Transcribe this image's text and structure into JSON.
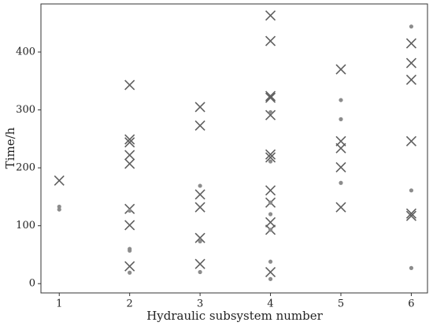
{
  "chart_data": {
    "type": "scatter",
    "xlabel": "Hydraulic subsystem number",
    "ylabel": "Time/h",
    "xlim": [
      0.74,
      6.23
    ],
    "xticks": [
      1,
      2,
      3,
      4,
      5,
      6
    ],
    "ylim": [
      -16,
      483
    ],
    "yticks": [
      0,
      100,
      200,
      300,
      400
    ],
    "series": [
      {
        "marker": "x",
        "color": "#5f5f5f",
        "x": [
          1,
          2,
          2,
          2,
          2,
          2,
          2,
          2,
          2,
          3,
          3,
          3,
          3,
          3,
          3,
          4,
          4,
          4,
          4,
          4,
          4,
          4,
          4,
          4,
          4,
          4,
          4,
          5,
          5,
          5,
          5,
          5,
          6,
          6,
          6,
          6,
          6,
          6
        ],
        "values": [
          178,
          343,
          249,
          244,
          222,
          207,
          129,
          101,
          30,
          305,
          273,
          154,
          132,
          79,
          34,
          463,
          419,
          324,
          321,
          291,
          223,
          218,
          161,
          140,
          106,
          93,
          20,
          370,
          246,
          234,
          201,
          132,
          415,
          381,
          352,
          246,
          121,
          117
        ]
      },
      {
        "marker": "o",
        "color": "#8c8c8c",
        "x": [
          1,
          1,
          2,
          2,
          2,
          2,
          3,
          3,
          3,
          4,
          4,
          4,
          4,
          4,
          4,
          4,
          5,
          5,
          5,
          6,
          6,
          6
        ],
        "values": [
          133,
          128,
          126,
          60,
          57,
          19,
          169,
          73,
          20,
          296,
          211,
          140,
          120,
          93,
          38,
          8,
          317,
          284,
          174,
          444,
          161,
          27
        ]
      }
    ]
  }
}
